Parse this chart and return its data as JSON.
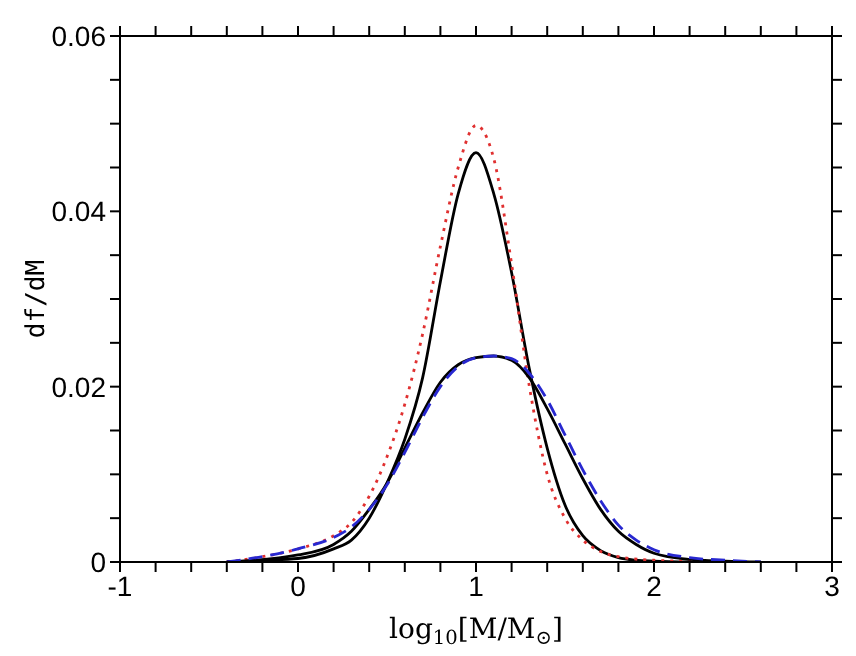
{
  "chart_data": {
    "type": "line",
    "xlabel": "log$_{10}$[M/M$_{⊙}$]",
    "ylabel": "df/dM",
    "xlim": [
      -1,
      3
    ],
    "ylim": [
      0,
      0.06
    ],
    "xticks": [
      -1,
      {
        "value": -0.8,
        "label": null
      },
      {
        "value": -0.6,
        "label": null
      },
      {
        "value": -0.4,
        "label": null
      },
      {
        "value": -0.2,
        "label": null
      },
      0,
      {
        "value": 0.2,
        "label": null
      },
      {
        "value": 0.4,
        "label": null
      },
      {
        "value": 0.6,
        "label": null
      },
      {
        "value": 0.8,
        "label": null
      },
      1,
      {
        "value": 1.2,
        "label": null
      },
      {
        "value": 1.4,
        "label": null
      },
      {
        "value": 1.6,
        "label": null
      },
      {
        "value": 1.8,
        "label": null
      },
      2,
      {
        "value": 2.2,
        "label": null
      },
      {
        "value": 2.4,
        "label": null
      },
      {
        "value": 2.6,
        "label": null
      },
      {
        "value": 2.8,
        "label": null
      },
      3
    ],
    "yticks": [
      0,
      {
        "value": 0.005,
        "label": null
      },
      {
        "value": 0.01,
        "label": null
      },
      {
        "value": 0.015,
        "label": null
      },
      0.02,
      {
        "value": 0.025,
        "label": null
      },
      {
        "value": 0.03,
        "label": null
      },
      {
        "value": 0.035,
        "label": null
      },
      0.04,
      {
        "value": 0.045,
        "label": null
      },
      {
        "value": 0.05,
        "label": null
      },
      {
        "value": 0.055,
        "label": null
      },
      0.06
    ],
    "marker": "none",
    "series": [
      {
        "color": "#000000",
        "line_style": "solid",
        "x": [
          -0.4,
          -0.2,
          0,
          0.2,
          0.3,
          0.4,
          0.5,
          0.6,
          0.7,
          0.8,
          0.9,
          1.0,
          1.1,
          1.2,
          1.3,
          1.4,
          1.5,
          1.6,
          1.7,
          1.8,
          1.9,
          2.0,
          2.2
        ],
        "values": [
          0,
          0.0002,
          0.0004,
          0.0015,
          0.0025,
          0.005,
          0.009,
          0.014,
          0.021,
          0.032,
          0.042,
          0.0467,
          0.042,
          0.033,
          0.022,
          0.013,
          0.0065,
          0.003,
          0.0013,
          0.0005,
          0.0002,
          0.0001,
          0
        ]
      },
      {
        "color": "#e03030",
        "line_style": "dotted",
        "x": [
          -0.4,
          -0.2,
          0,
          0.2,
          0.3,
          0.4,
          0.5,
          0.6,
          0.7,
          0.8,
          0.9,
          1.0,
          1.1,
          1.2,
          1.3,
          1.4,
          1.5,
          1.6,
          1.7,
          1.8,
          2.0,
          2.2,
          2.5
        ],
        "values": [
          0,
          0.0006,
          0.0015,
          0.003,
          0.0045,
          0.0075,
          0.012,
          0.018,
          0.026,
          0.036,
          0.045,
          0.0498,
          0.046,
          0.034,
          0.02,
          0.01,
          0.005,
          0.0025,
          0.0012,
          0.0006,
          0.0002,
          0.0001,
          0
        ]
      },
      {
        "color": "#000000",
        "line_style": "solid",
        "x": [
          -0.4,
          0,
          0.2,
          0.3,
          0.4,
          0.5,
          0.6,
          0.7,
          0.8,
          0.9,
          1.0,
          1.1,
          1.2,
          1.3,
          1.4,
          1.5,
          1.6,
          1.7,
          1.8,
          1.9,
          2.0,
          2.2,
          2.4,
          2.6
        ],
        "values": [
          0,
          0.0008,
          0.002,
          0.0035,
          0.006,
          0.009,
          0.013,
          0.017,
          0.0205,
          0.0225,
          0.0233,
          0.0235,
          0.023,
          0.021,
          0.0175,
          0.0135,
          0.0095,
          0.006,
          0.0035,
          0.002,
          0.001,
          0.0003,
          0.0001,
          0
        ]
      },
      {
        "color": "#2828d0",
        "line_style": "dashed",
        "x": [
          -0.4,
          0,
          0.2,
          0.3,
          0.4,
          0.5,
          0.6,
          0.7,
          0.8,
          0.9,
          1.0,
          1.1,
          1.2,
          1.3,
          1.4,
          1.5,
          1.6,
          1.7,
          1.8,
          1.9,
          2.0,
          2.2,
          2.4,
          2.6
        ],
        "values": [
          0,
          0.0015,
          0.0028,
          0.004,
          0.006,
          0.0088,
          0.0125,
          0.0165,
          0.02,
          0.0223,
          0.0233,
          0.0235,
          0.0232,
          0.0215,
          0.0185,
          0.0145,
          0.0105,
          0.007,
          0.0042,
          0.0025,
          0.0014,
          0.0005,
          0.0002,
          0
        ]
      }
    ]
  }
}
